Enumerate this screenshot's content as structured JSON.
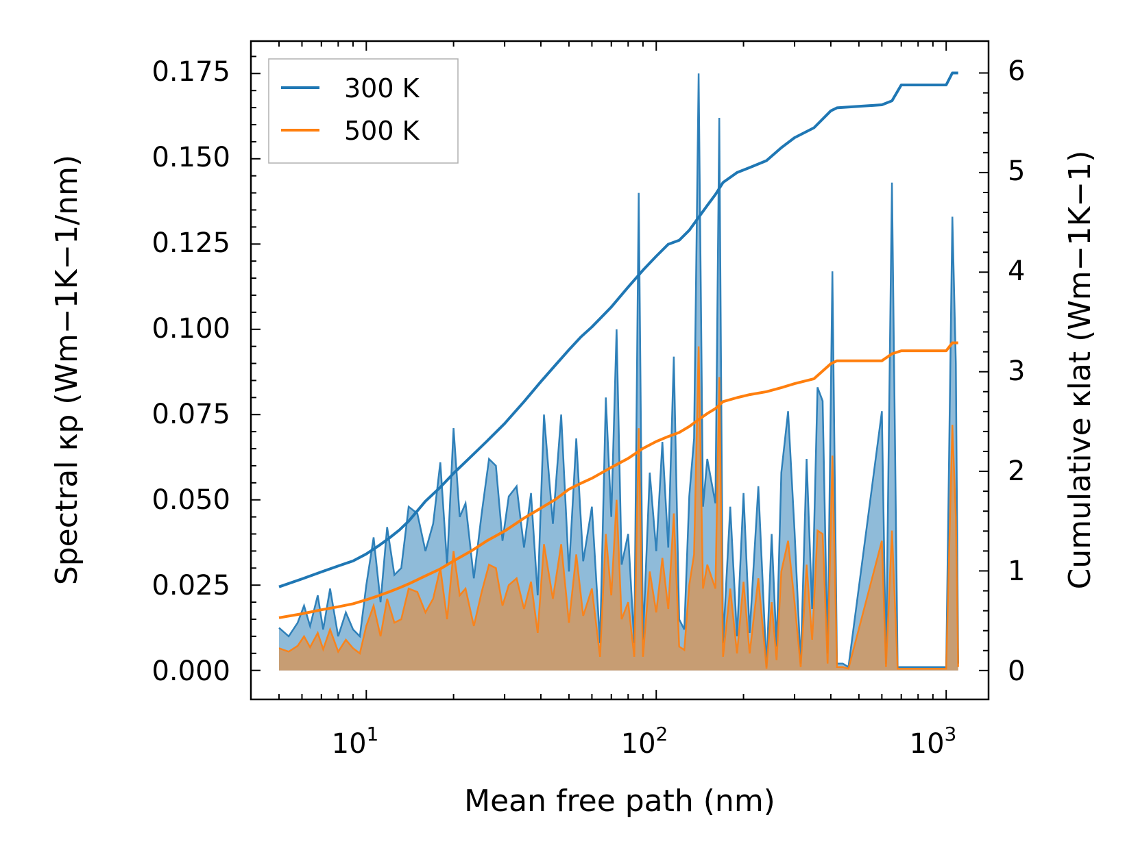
{
  "chart_data": {
    "type": "line",
    "title": "",
    "xlabel": "Mean free path (nm)",
    "ylabel_left": "Spectral κp (Wm−1K−1/nm)",
    "ylabel_right": "Cumulative κlat (Wm−1K−1)",
    "xscale": "log",
    "xlim": [
      4,
      1400
    ],
    "ylim_left": [
      -0.0085,
      0.1845
    ],
    "ylim_right": [
      -0.29,
      6.32
    ],
    "x_ticks": [
      {
        "value": 10,
        "label_base": "10",
        "label_exp": "1"
      },
      {
        "value": 100,
        "label_base": "10",
        "label_exp": "2"
      },
      {
        "value": 1000,
        "label_base": "10",
        "label_exp": "3"
      }
    ],
    "y_ticks_left": [
      {
        "value": 0.0,
        "label": "0.000"
      },
      {
        "value": 0.025,
        "label": "0.025"
      },
      {
        "value": 0.05,
        "label": "0.050"
      },
      {
        "value": 0.075,
        "label": "0.075"
      },
      {
        "value": 0.1,
        "label": "0.100"
      },
      {
        "value": 0.125,
        "label": "0.125"
      },
      {
        "value": 0.15,
        "label": "0.150"
      },
      {
        "value": 0.175,
        "label": "0.175"
      }
    ],
    "y_ticks_right": [
      {
        "value": 0,
        "label": "0"
      },
      {
        "value": 1,
        "label": "1"
      },
      {
        "value": 2,
        "label": "2"
      },
      {
        "value": 3,
        "label": "3"
      },
      {
        "value": 4,
        "label": "4"
      },
      {
        "value": 5,
        "label": "5"
      },
      {
        "value": 6,
        "label": "6"
      }
    ],
    "legend": {
      "position": "top-left",
      "entries": [
        "300 K",
        "500 K"
      ]
    },
    "colors": {
      "300 K": "#1f77b4",
      "500 K": "#ff7f0e"
    },
    "spectral_series": [
      {
        "name": "300 K spectral",
        "axis": "left",
        "x": [
          5,
          5.4,
          5.8,
          6.1,
          6.4,
          6.8,
          7.1,
          7.5,
          8,
          8.5,
          9,
          9.5,
          10,
          10.6,
          11.2,
          11.8,
          12.5,
          13.2,
          14,
          15,
          16,
          17,
          18,
          19,
          20,
          21,
          22,
          23.5,
          25,
          26.5,
          28,
          29.5,
          31,
          33,
          35,
          37,
          39,
          41,
          44,
          47,
          50,
          53,
          56,
          60,
          64,
          67,
          70,
          73,
          76,
          80,
          84,
          87,
          90,
          95,
          100,
          105,
          110,
          115,
          120,
          125,
          130,
          135,
          140,
          145,
          150,
          160,
          165,
          170,
          180,
          190,
          200,
          210,
          225,
          240,
          250,
          260,
          270,
          285,
          300,
          315,
          330,
          345,
          360,
          375,
          390,
          405,
          420,
          440,
          460,
          600,
          620,
          650,
          680,
          700,
          720,
          1000,
          1050,
          1080,
          1100
        ],
        "values": [
          0.0125,
          0.01,
          0.014,
          0.019,
          0.013,
          0.022,
          0.012,
          0.024,
          0.01,
          0.017,
          0.012,
          0.01,
          0.025,
          0.039,
          0.02,
          0.042,
          0.028,
          0.03,
          0.048,
          0.046,
          0.035,
          0.043,
          0.061,
          0.031,
          0.071,
          0.045,
          0.049,
          0.027,
          0.046,
          0.062,
          0.06,
          0.038,
          0.051,
          0.054,
          0.036,
          0.052,
          0.022,
          0.075,
          0.043,
          0.075,
          0.029,
          0.068,
          0.032,
          0.048,
          0.008,
          0.08,
          0.045,
          0.1,
          0.031,
          0.04,
          0.008,
          0.14,
          0.009,
          0.058,
          0.035,
          0.067,
          0.036,
          0.092,
          0.015,
          0.012,
          0.051,
          0.068,
          0.175,
          0.048,
          0.062,
          0.049,
          0.162,
          0.008,
          0.048,
          0.01,
          0.052,
          0.011,
          0.054,
          0.001,
          0.04,
          0.007,
          0.058,
          0.076,
          0.041,
          0.002,
          0.062,
          0.018,
          0.083,
          0.079,
          0.005,
          0.117,
          0.002,
          0.002,
          0.001,
          0.076,
          0.002,
          0.143,
          0.001,
          0.001,
          0.001,
          0.001,
          0.133,
          0.09,
          0.002
        ]
      },
      {
        "name": "500 K spectral",
        "axis": "left",
        "x": [
          5,
          5.4,
          5.8,
          6.1,
          6.4,
          6.8,
          7.1,
          7.5,
          8,
          8.5,
          9,
          9.5,
          10,
          10.6,
          11.2,
          11.8,
          12.5,
          13.2,
          14,
          15,
          16,
          17,
          18,
          19,
          20,
          21,
          22,
          23.5,
          25,
          26.5,
          28,
          29.5,
          31,
          33,
          35,
          37,
          39,
          41,
          44,
          47,
          50,
          53,
          56,
          60,
          64,
          67,
          70,
          73,
          76,
          80,
          84,
          87,
          90,
          95,
          100,
          105,
          110,
          115,
          120,
          125,
          130,
          135,
          140,
          145,
          150,
          160,
          165,
          170,
          180,
          190,
          200,
          210,
          225,
          240,
          250,
          260,
          270,
          285,
          300,
          315,
          330,
          345,
          360,
          375,
          390,
          405,
          420,
          440,
          460,
          600,
          620,
          650,
          680,
          700,
          720,
          1000,
          1050,
          1080,
          1100
        ],
        "values": [
          0.0065,
          0.0055,
          0.0072,
          0.01,
          0.0068,
          0.011,
          0.0062,
          0.012,
          0.0055,
          0.009,
          0.0065,
          0.005,
          0.013,
          0.019,
          0.01,
          0.021,
          0.014,
          0.015,
          0.024,
          0.023,
          0.017,
          0.021,
          0.03,
          0.015,
          0.035,
          0.022,
          0.024,
          0.013,
          0.023,
          0.031,
          0.03,
          0.019,
          0.025,
          0.027,
          0.018,
          0.026,
          0.011,
          0.037,
          0.021,
          0.037,
          0.014,
          0.034,
          0.016,
          0.024,
          0.004,
          0.04,
          0.022,
          0.05,
          0.015,
          0.02,
          0.004,
          0.071,
          0.004,
          0.029,
          0.017,
          0.033,
          0.018,
          0.046,
          0.007,
          0.006,
          0.025,
          0.034,
          0.095,
          0.024,
          0.031,
          0.024,
          0.086,
          0.004,
          0.024,
          0.005,
          0.026,
          0.005,
          0.027,
          0.0005,
          0.02,
          0.003,
          0.029,
          0.038,
          0.02,
          0.001,
          0.031,
          0.009,
          0.041,
          0.04,
          0.002,
          0.063,
          0.001,
          0.001,
          0.0005,
          0.038,
          0.001,
          0.041,
          0.0005,
          0.0005,
          0.0005,
          0.0005,
          0.072,
          0.045,
          0.001
        ]
      }
    ],
    "cumulative_series": [
      {
        "name": "300 K",
        "axis": "right",
        "x": [
          5,
          6,
          7,
          8,
          9,
          10,
          11,
          12,
          13,
          14,
          16,
          18,
          20,
          23,
          26,
          30,
          35,
          40,
          45,
          50,
          55,
          60,
          70,
          80,
          90,
          100,
          110,
          120,
          130,
          140,
          150,
          160,
          170,
          190,
          210,
          240,
          270,
          300,
          350,
          400,
          420,
          600,
          650,
          700,
          1000,
          1050,
          1100
        ],
        "values": [
          0.84,
          0.92,
          0.99,
          1.05,
          1.1,
          1.17,
          1.25,
          1.33,
          1.41,
          1.5,
          1.7,
          1.84,
          1.98,
          2.15,
          2.3,
          2.48,
          2.7,
          2.9,
          3.07,
          3.22,
          3.35,
          3.45,
          3.65,
          3.85,
          4.02,
          4.16,
          4.28,
          4.32,
          4.42,
          4.55,
          4.67,
          4.78,
          4.9,
          5.0,
          5.05,
          5.12,
          5.25,
          5.35,
          5.45,
          5.62,
          5.65,
          5.68,
          5.72,
          5.88,
          5.88,
          6.0,
          6.0
        ]
      },
      {
        "name": "500 K",
        "axis": "right",
        "x": [
          5,
          6,
          7,
          8,
          9,
          10,
          11,
          12,
          13,
          14,
          16,
          18,
          20,
          23,
          26,
          30,
          35,
          40,
          45,
          50,
          55,
          60,
          70,
          80,
          90,
          100,
          110,
          120,
          130,
          140,
          150,
          160,
          170,
          190,
          210,
          240,
          270,
          300,
          350,
          400,
          420,
          600,
          650,
          700,
          1000,
          1050,
          1100
        ],
        "values": [
          0.53,
          0.57,
          0.61,
          0.64,
          0.67,
          0.71,
          0.75,
          0.79,
          0.83,
          0.87,
          0.95,
          1.02,
          1.1,
          1.2,
          1.3,
          1.4,
          1.53,
          1.63,
          1.72,
          1.82,
          1.88,
          1.93,
          2.04,
          2.13,
          2.23,
          2.3,
          2.35,
          2.39,
          2.45,
          2.52,
          2.58,
          2.63,
          2.7,
          2.74,
          2.77,
          2.8,
          2.84,
          2.88,
          2.93,
          3.08,
          3.11,
          3.11,
          3.18,
          3.21,
          3.21,
          3.29,
          3.29
        ]
      }
    ]
  }
}
